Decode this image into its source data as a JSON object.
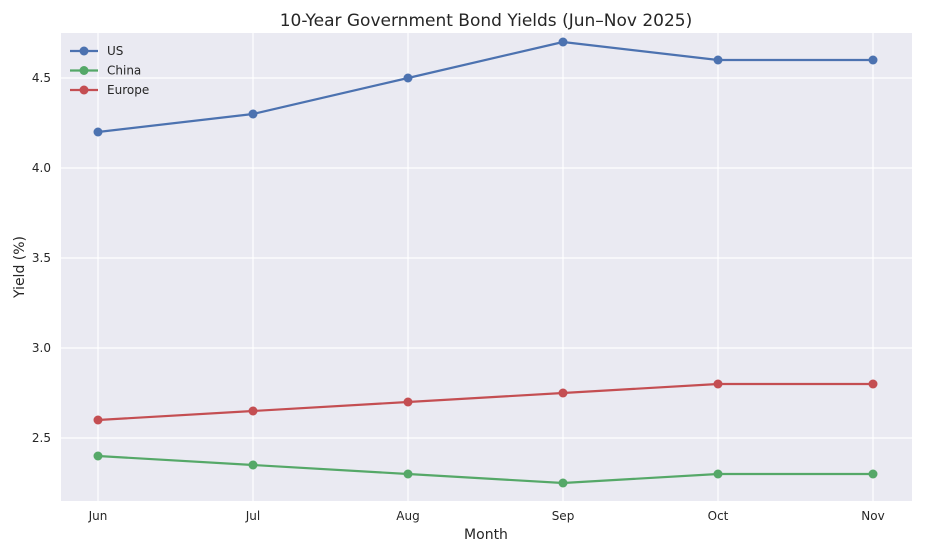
{
  "chart_data": {
    "type": "line",
    "title": "10-Year Government Bond Yields (Jun–Nov 2025)",
    "xlabel": "Month",
    "ylabel": "Yield (%)",
    "categories": [
      "Jun",
      "Jul",
      "Aug",
      "Sep",
      "Oct",
      "Nov"
    ],
    "ylim": [
      2.15,
      4.75
    ],
    "yticks": [
      2.5,
      3.0,
      3.5,
      4.0,
      4.5
    ],
    "ytick_labels": [
      "2.5",
      "3.0",
      "3.5",
      "4.0",
      "4.5"
    ],
    "grid": true,
    "legend_position": "top-left",
    "background": "#eaeaf2",
    "series": [
      {
        "name": "US",
        "color": "#4c72b0",
        "values": [
          4.2,
          4.3,
          4.5,
          4.7,
          4.6,
          4.6
        ]
      },
      {
        "name": "China",
        "color": "#55a868",
        "values": [
          2.4,
          2.35,
          2.3,
          2.25,
          2.3,
          2.3
        ]
      },
      {
        "name": "Europe",
        "color": "#c44e52",
        "values": [
          2.6,
          2.65,
          2.7,
          2.75,
          2.8,
          2.8
        ]
      }
    ]
  }
}
